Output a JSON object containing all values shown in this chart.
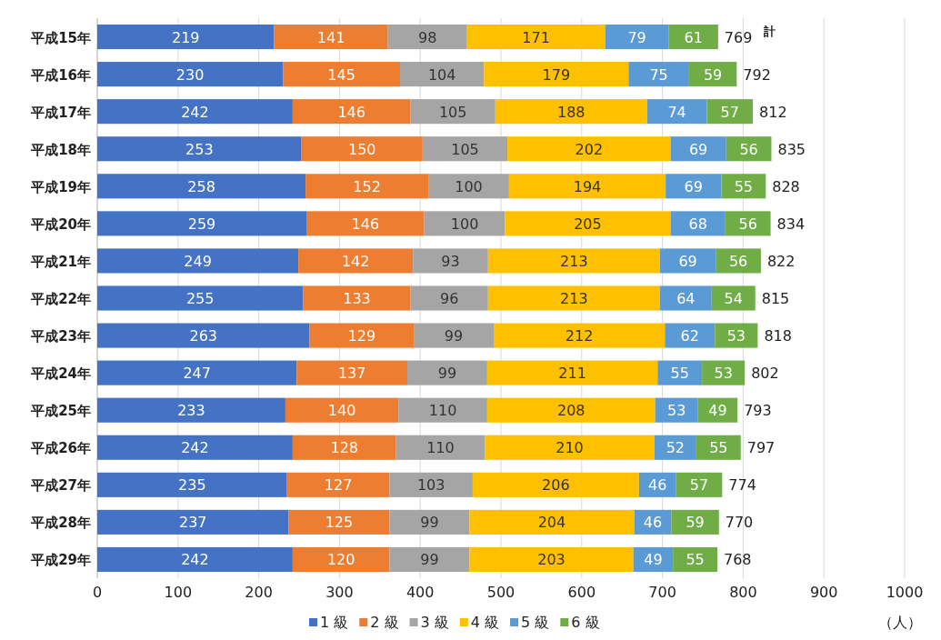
{
  "chart_data": {
    "type": "bar",
    "orientation": "horizontal",
    "stacked": true,
    "data_labels": true,
    "grid": "x",
    "legend": "bottom",
    "xlabel": "（人）",
    "annotations": [
      "計"
    ],
    "categories": [
      "平成15年",
      "平成16年",
      "平成17年",
      "平成18年",
      "平成19年",
      "平成20年",
      "平成21年",
      "平成22年",
      "平成23年",
      "平成24年",
      "平成25年",
      "平成26年",
      "平成27年",
      "平成28年",
      "平成29年"
    ],
    "xlim": [
      0,
      1000
    ],
    "xticks": [
      0,
      100,
      200,
      300,
      400,
      500,
      600,
      700,
      800,
      900,
      1000
    ],
    "series": [
      {
        "name": "1 級",
        "color": "#4472c4",
        "values": [
          219,
          230,
          242,
          253,
          258,
          259,
          249,
          255,
          263,
          247,
          233,
          242,
          235,
          237,
          242
        ]
      },
      {
        "name": "2 級",
        "color": "#ed7d31",
        "values": [
          141,
          145,
          146,
          150,
          152,
          146,
          142,
          133,
          129,
          137,
          140,
          128,
          127,
          125,
          120
        ]
      },
      {
        "name": "3 級",
        "color": "#a5a5a5",
        "values": [
          98,
          104,
          105,
          105,
          100,
          100,
          93,
          96,
          99,
          99,
          110,
          110,
          103,
          99,
          99
        ]
      },
      {
        "name": "4 級",
        "color": "#ffc000",
        "values": [
          171,
          179,
          188,
          202,
          194,
          205,
          213,
          213,
          212,
          211,
          208,
          210,
          206,
          204,
          203
        ]
      },
      {
        "name": "5 級",
        "color": "#5b9bd5",
        "values": [
          79,
          75,
          74,
          69,
          69,
          68,
          69,
          64,
          62,
          55,
          53,
          52,
          46,
          46,
          49
        ]
      },
      {
        "name": "6 級",
        "color": "#70ad47",
        "values": [
          61,
          59,
          57,
          56,
          55,
          56,
          56,
          54,
          53,
          53,
          49,
          55,
          57,
          59,
          55
        ]
      }
    ],
    "totals": [
      "769",
      "792",
      "812",
      "835",
      "828",
      "834",
      "822",
      "815",
      "818",
      "802",
      "793",
      "797",
      "774",
      "770",
      "768"
    ]
  }
}
